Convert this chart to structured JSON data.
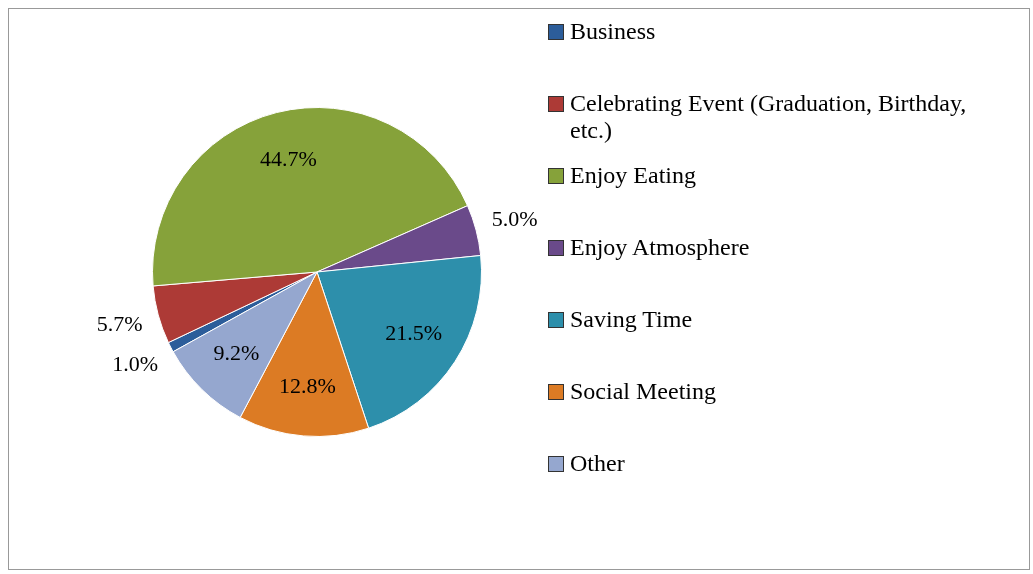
{
  "chart_data": {
    "type": "pie",
    "categories": [
      "Business",
      "Celebrating Event (Graduation, Birthday, etc.)",
      "Enjoy Eating",
      "Enjoy Atmosphere",
      "Saving Time",
      "Social Meeting",
      "Other"
    ],
    "values": [
      1.0,
      5.7,
      44.7,
      5.0,
      21.5,
      12.8,
      9.2
    ],
    "colors": [
      "#2c5d9a",
      "#ad3a36",
      "#86a23a",
      "#6a4a8a",
      "#2d8fab",
      "#dc7b24",
      "#95a7cf"
    ],
    "value_labels": [
      "1.0%",
      "5.7%",
      "44.7%",
      "5.0%",
      "21.5%",
      "12.8%",
      "9.2%"
    ],
    "legend": "right"
  }
}
